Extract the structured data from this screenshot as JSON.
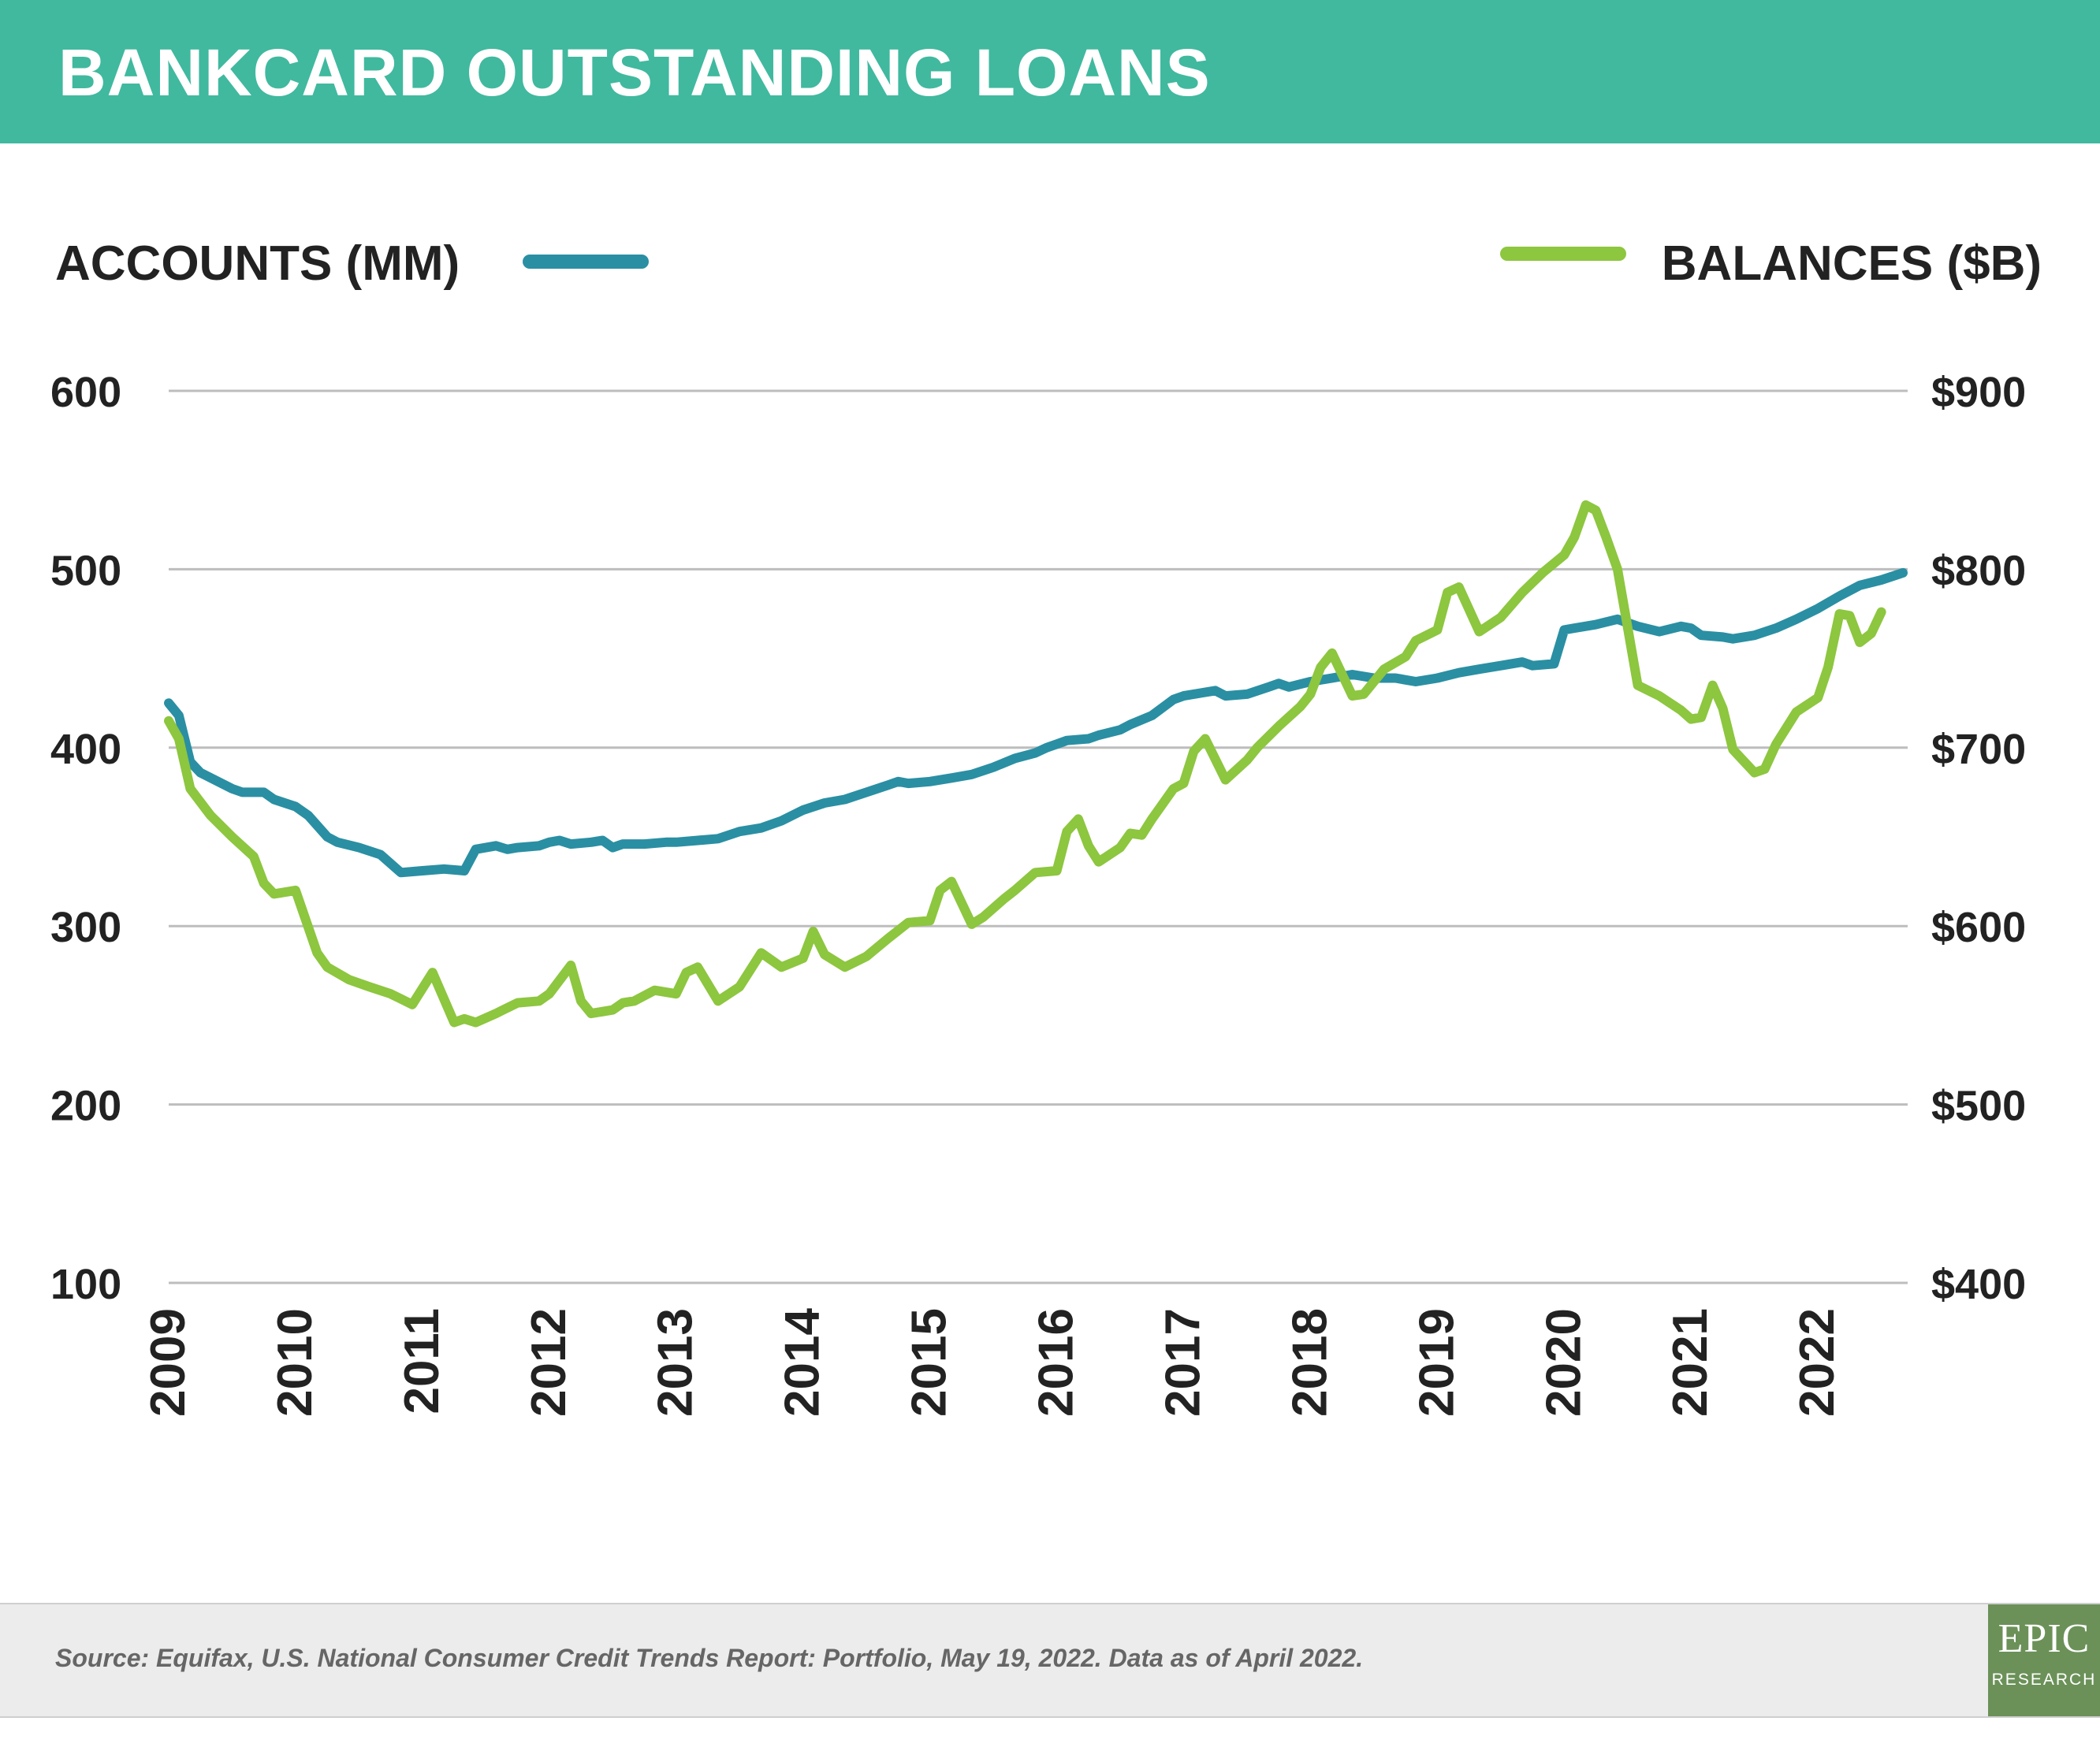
{
  "header": {
    "title": "BANKCARD OUTSTANDING LOANS"
  },
  "colors": {
    "banner": "#40b99f",
    "accounts": "#2a8fa3",
    "balances": "#8dc63f",
    "grid": "#bdbdbd",
    "text": "#222222",
    "logo": "#6b9158"
  },
  "chart_data": {
    "type": "line",
    "title": "BANKCARD OUTSTANDING LOANS",
    "grid": true,
    "legend_placement": "top",
    "x_ticks": [
      "2009",
      "2010",
      "2011",
      "2012",
      "2013",
      "2014",
      "2015",
      "2016",
      "2017",
      "2018",
      "2019",
      "2020",
      "2021",
      "2022"
    ],
    "xlim": [
      2009.0,
      2022.33
    ],
    "left_axis": {
      "label": "ACCOUNTS (MM)",
      "ticks": [
        "600",
        "500",
        "400",
        "300",
        "200",
        "100"
      ],
      "range": [
        100,
        600
      ]
    },
    "right_axis": {
      "label": "BALANCES ($B)",
      "ticks": [
        "$900",
        "$800",
        "$700",
        "$600",
        "$500",
        "$400"
      ],
      "range": [
        400,
        900
      ]
    },
    "series": [
      {
        "name": "ACCOUNTS (MM)",
        "axis": "left",
        "points": [
          [
            2009.0,
            425
          ],
          [
            2009.08,
            418
          ],
          [
            2009.17,
            392
          ],
          [
            2009.25,
            386
          ],
          [
            2009.5,
            377
          ],
          [
            2009.58,
            375
          ],
          [
            2009.75,
            375
          ],
          [
            2009.83,
            371
          ],
          [
            2010.0,
            367
          ],
          [
            2010.1,
            362
          ],
          [
            2010.25,
            350
          ],
          [
            2010.33,
            347
          ],
          [
            2010.5,
            344
          ],
          [
            2010.67,
            340
          ],
          [
            2010.83,
            330
          ],
          [
            2011.0,
            331
          ],
          [
            2011.17,
            332
          ],
          [
            2011.33,
            331
          ],
          [
            2011.42,
            343
          ],
          [
            2011.58,
            345
          ],
          [
            2011.67,
            343
          ],
          [
            2011.75,
            344
          ],
          [
            2011.92,
            345
          ],
          [
            2012.0,
            347
          ],
          [
            2012.08,
            348
          ],
          [
            2012.17,
            346
          ],
          [
            2012.33,
            347
          ],
          [
            2012.42,
            348
          ],
          [
            2012.5,
            344
          ],
          [
            2012.58,
            346
          ],
          [
            2012.75,
            346
          ],
          [
            2012.92,
            347
          ],
          [
            2013.0,
            347
          ],
          [
            2013.17,
            348
          ],
          [
            2013.33,
            349
          ],
          [
            2013.5,
            353
          ],
          [
            2013.67,
            355
          ],
          [
            2013.83,
            359
          ],
          [
            2014.0,
            365
          ],
          [
            2014.17,
            369
          ],
          [
            2014.33,
            371
          ],
          [
            2014.5,
            375
          ],
          [
            2014.67,
            379
          ],
          [
            2014.75,
            381
          ],
          [
            2014.83,
            380
          ],
          [
            2015.0,
            381
          ],
          [
            2015.17,
            383
          ],
          [
            2015.33,
            385
          ],
          [
            2015.5,
            389
          ],
          [
            2015.67,
            394
          ],
          [
            2015.83,
            397
          ],
          [
            2015.92,
            400
          ],
          [
            2016.0,
            402
          ],
          [
            2016.08,
            404
          ],
          [
            2016.25,
            405
          ],
          [
            2016.33,
            407
          ],
          [
            2016.5,
            410
          ],
          [
            2016.58,
            413
          ],
          [
            2016.75,
            418
          ],
          [
            2016.92,
            427
          ],
          [
            2017.0,
            429
          ],
          [
            2017.25,
            432
          ],
          [
            2017.33,
            429
          ],
          [
            2017.5,
            430
          ],
          [
            2017.67,
            434
          ],
          [
            2017.75,
            436
          ],
          [
            2017.83,
            434
          ],
          [
            2018.0,
            437
          ],
          [
            2018.17,
            439
          ],
          [
            2018.33,
            441
          ],
          [
            2018.5,
            439
          ],
          [
            2018.67,
            439
          ],
          [
            2018.83,
            437
          ],
          [
            2019.0,
            439
          ],
          [
            2019.17,
            442
          ],
          [
            2019.33,
            444
          ],
          [
            2019.5,
            446
          ],
          [
            2019.67,
            448
          ],
          [
            2019.75,
            446
          ],
          [
            2019.92,
            447
          ],
          [
            2020.0,
            466
          ],
          [
            2020.08,
            467
          ],
          [
            2020.25,
            469
          ],
          [
            2020.42,
            472
          ],
          [
            2020.58,
            468
          ],
          [
            2020.75,
            465
          ],
          [
            2020.92,
            468
          ],
          [
            2021.0,
            467
          ],
          [
            2021.08,
            463
          ],
          [
            2021.25,
            462
          ],
          [
            2021.33,
            461
          ],
          [
            2021.5,
            463
          ],
          [
            2021.67,
            467
          ],
          [
            2021.83,
            472
          ],
          [
            2022.0,
            478
          ],
          [
            2022.17,
            485
          ],
          [
            2022.33,
            491
          ],
          [
            2022.5,
            494
          ],
          [
            2022.67,
            498
          ]
        ]
      },
      {
        "name": "BALANCES ($B)",
        "axis": "right",
        "points": [
          [
            2009.0,
            715
          ],
          [
            2009.08,
            705
          ],
          [
            2009.17,
            677
          ],
          [
            2009.33,
            662
          ],
          [
            2009.5,
            650
          ],
          [
            2009.67,
            639
          ],
          [
            2009.75,
            624
          ],
          [
            2009.83,
            618
          ],
          [
            2010.0,
            620
          ],
          [
            2010.17,
            585
          ],
          [
            2010.25,
            577
          ],
          [
            2010.42,
            570
          ],
          [
            2010.58,
            566
          ],
          [
            2010.75,
            562
          ],
          [
            2010.92,
            556
          ],
          [
            2011.08,
            574
          ],
          [
            2011.25,
            546
          ],
          [
            2011.33,
            548
          ],
          [
            2011.42,
            546
          ],
          [
            2011.58,
            551
          ],
          [
            2011.75,
            557
          ],
          [
            2011.92,
            558
          ],
          [
            2012.0,
            562
          ],
          [
            2012.17,
            578
          ],
          [
            2012.25,
            558
          ],
          [
            2012.33,
            551
          ],
          [
            2012.5,
            553
          ],
          [
            2012.58,
            557
          ],
          [
            2012.67,
            558
          ],
          [
            2012.83,
            564
          ],
          [
            2013.0,
            562
          ],
          [
            2013.08,
            574
          ],
          [
            2013.17,
            577
          ],
          [
            2013.33,
            558
          ],
          [
            2013.5,
            566
          ],
          [
            2013.67,
            585
          ],
          [
            2013.83,
            577
          ],
          [
            2014.0,
            582
          ],
          [
            2014.08,
            597
          ],
          [
            2014.17,
            584
          ],
          [
            2014.33,
            577
          ],
          [
            2014.5,
            583
          ],
          [
            2014.67,
            593
          ],
          [
            2014.83,
            602
          ],
          [
            2015.0,
            603
          ],
          [
            2015.08,
            620
          ],
          [
            2015.17,
            625
          ],
          [
            2015.33,
            601
          ],
          [
            2015.42,
            605
          ],
          [
            2015.58,
            615
          ],
          [
            2015.67,
            620
          ],
          [
            2015.83,
            630
          ],
          [
            2016.0,
            631
          ],
          [
            2016.08,
            653
          ],
          [
            2016.17,
            660
          ],
          [
            2016.25,
            645
          ],
          [
            2016.33,
            636
          ],
          [
            2016.5,
            644
          ],
          [
            2016.58,
            652
          ],
          [
            2016.67,
            651
          ],
          [
            2016.75,
            660
          ],
          [
            2016.92,
            677
          ],
          [
            2017.0,
            680
          ],
          [
            2017.08,
            698
          ],
          [
            2017.17,
            705
          ],
          [
            2017.33,
            682
          ],
          [
            2017.5,
            693
          ],
          [
            2017.58,
            700
          ],
          [
            2017.75,
            712
          ],
          [
            2017.92,
            723
          ],
          [
            2018.0,
            730
          ],
          [
            2018.08,
            745
          ],
          [
            2018.17,
            753
          ],
          [
            2018.33,
            729
          ],
          [
            2018.42,
            730
          ],
          [
            2018.58,
            744
          ],
          [
            2018.75,
            751
          ],
          [
            2018.83,
            760
          ],
          [
            2019.0,
            766
          ],
          [
            2019.08,
            787
          ],
          [
            2019.17,
            790
          ],
          [
            2019.33,
            765
          ],
          [
            2019.5,
            773
          ],
          [
            2019.67,
            787
          ],
          [
            2019.83,
            798
          ],
          [
            2020.0,
            808
          ],
          [
            2020.08,
            818
          ],
          [
            2020.17,
            836
          ],
          [
            2020.25,
            833
          ],
          [
            2020.33,
            818
          ],
          [
            2020.42,
            800
          ],
          [
            2020.58,
            735
          ],
          [
            2020.75,
            729
          ],
          [
            2020.92,
            721
          ],
          [
            2021.0,
            716
          ],
          [
            2021.08,
            717
          ],
          [
            2021.17,
            735
          ],
          [
            2021.25,
            722
          ],
          [
            2021.33,
            699
          ],
          [
            2021.5,
            686
          ],
          [
            2021.58,
            688
          ],
          [
            2021.67,
            702
          ],
          [
            2021.83,
            720
          ],
          [
            2022.0,
            728
          ],
          [
            2022.08,
            745
          ],
          [
            2022.17,
            775
          ],
          [
            2022.25,
            774
          ],
          [
            2022.33,
            759
          ],
          [
            2022.42,
            764
          ],
          [
            2022.5,
            776
          ]
        ]
      }
    ]
  },
  "footer": {
    "source": "Source: Equifax, U.S. National Consumer Credit Trends Report: Portfolio, May 19, 2022. Data as of April 2022.",
    "logo_top": "EPIC",
    "logo_bottom": "RESEARCH"
  }
}
